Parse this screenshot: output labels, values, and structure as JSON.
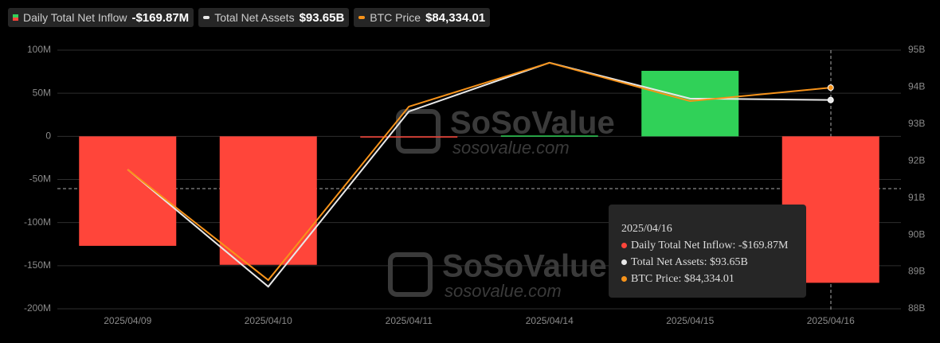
{
  "chart_data": {
    "type": "bar-line",
    "categories": [
      "2025/04/09",
      "2025/04/10",
      "2025/04/11",
      "2025/04/14",
      "2025/04/15",
      "2025/04/16"
    ],
    "series": [
      {
        "name": "Daily Total Net Inflow",
        "type": "bar",
        "color": "#30d158",
        "negative_color": "#ff453a",
        "values": [
          -127,
          -149,
          -1,
          1,
          76,
          -169.87
        ],
        "value_labels": [
          null,
          null,
          null,
          null,
          null,
          "-$169.87M"
        ]
      },
      {
        "name": "Total Net Assets",
        "type": "line",
        "axis": "y2",
        "color": "#e8e8e8",
        "values": [
          91.77,
          88.6,
          93.34,
          94.66,
          93.69,
          93.65
        ],
        "value_labels": [
          null,
          null,
          null,
          null,
          null,
          "$93.65B"
        ]
      },
      {
        "name": "BTC Price",
        "type": "line",
        "axis": "y3",
        "color": "#f7931a",
        "values": [
          81396,
          77430,
          83654,
          85225,
          83852,
          84334.01
        ],
        "value_labels": [
          null,
          null,
          null,
          null,
          null,
          "$84,334.01"
        ]
      }
    ],
    "ylim": [
      -200,
      100
    ],
    "yticks": [
      {
        "value": 100,
        "label": "100M"
      },
      {
        "value": 50,
        "label": "50M"
      },
      0,
      {
        "value": -50,
        "label": "-50M"
      },
      {
        "value": -100,
        "label": "-100M"
      },
      {
        "value": -150,
        "label": "-150M"
      },
      {
        "value": -200,
        "label": "-200M"
      }
    ],
    "y2lim": [
      88,
      95
    ],
    "y2ticks": [
      {
        "value": 95,
        "label": "95B"
      },
      {
        "value": 94,
        "label": "94B"
      },
      {
        "value": 93,
        "label": "93B"
      },
      {
        "value": 92,
        "label": "92B"
      },
      {
        "value": 91,
        "label": "91B"
      },
      {
        "value": 90,
        "label": "90B"
      },
      {
        "value": 89,
        "label": "89B"
      },
      {
        "value": 88,
        "label": "88B"
      }
    ],
    "y3lim": [
      76400,
      85680
    ],
    "grid": true,
    "tooltip": {
      "title": "2025/04/16",
      "lines": [
        "Daily Total Net Inflow: -$169.87M",
        "Total Net Assets: $93.65B",
        "BTC Price: $84,334.01"
      ]
    },
    "watermark": {
      "brand": "SoSoValue",
      "url": "sosovalue.com"
    }
  }
}
